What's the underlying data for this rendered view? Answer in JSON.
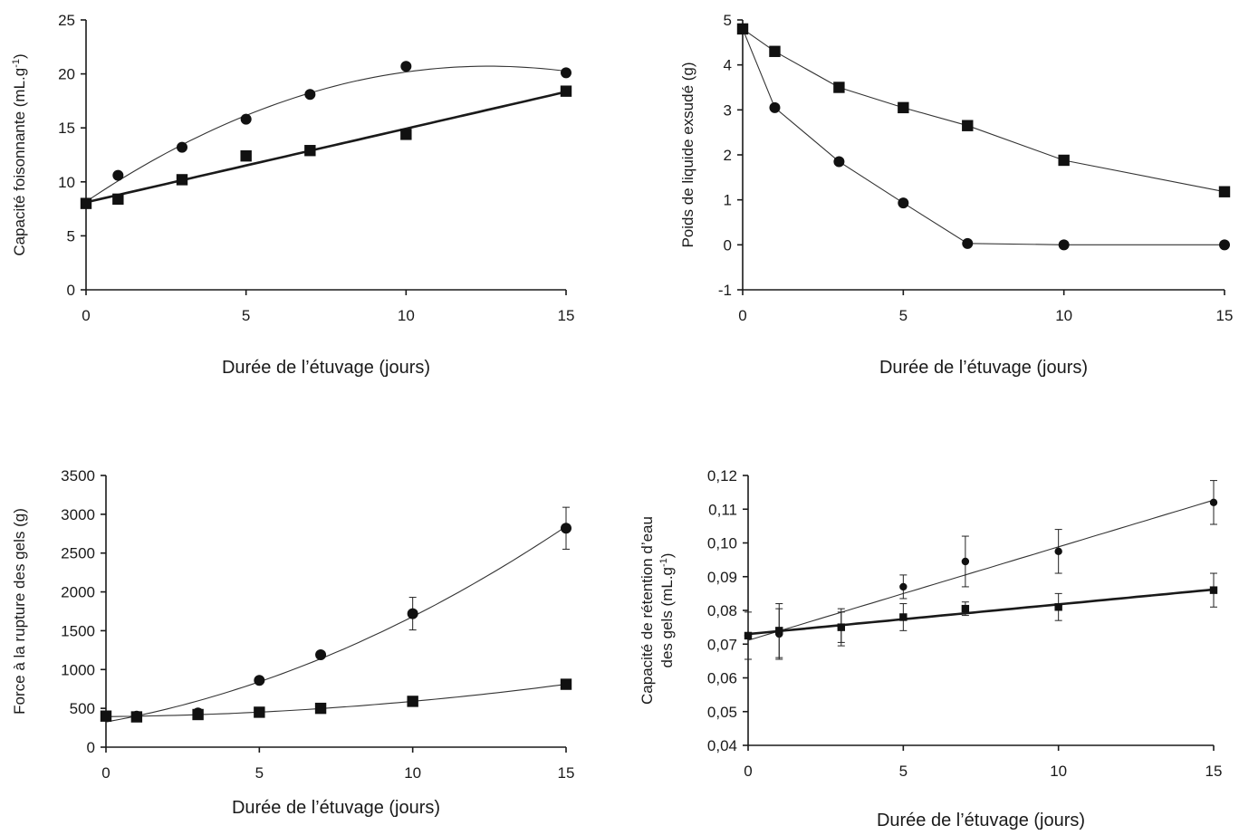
{
  "chart_data": [
    {
      "type": "scatter",
      "title": "",
      "xlabel": "Durée de l’étuvage (jours)",
      "ylabel_lines": [
        "Capacité foisonnante (mL.g-1)"
      ],
      "xlim": [
        0,
        15
      ],
      "ylim": [
        0,
        25
      ],
      "xticks": [
        "0",
        "5",
        "10",
        "15"
      ],
      "yticks": [
        "0",
        "5",
        "10",
        "15",
        "20",
        "25"
      ],
      "grid": false,
      "series": [
        {
          "marker": "circle",
          "fit": "quadratic",
          "x": [
            0,
            1,
            3,
            5,
            7,
            10,
            15
          ],
          "y": [
            8.0,
            10.6,
            13.2,
            15.8,
            18.1,
            20.7,
            20.1
          ]
        },
        {
          "marker": "square",
          "fit": "linear",
          "x": [
            0,
            1,
            3,
            5,
            7,
            10,
            15
          ],
          "y": [
            8.0,
            8.4,
            10.2,
            12.4,
            12.9,
            14.4,
            18.4
          ]
        }
      ]
    },
    {
      "type": "line",
      "title": "",
      "xlabel": "Durée de l’étuvage (jours)",
      "ylabel_lines": [
        "Poids de liquide exsudé (g)"
      ],
      "xlim": [
        0,
        15
      ],
      "ylim": [
        -1,
        5
      ],
      "xticks": [
        "0",
        "5",
        "10",
        "15"
      ],
      "yticks": [
        "-1",
        "0",
        "1",
        "2",
        "3",
        "4",
        "5"
      ],
      "grid": false,
      "series": [
        {
          "marker": "square",
          "x": [
            0,
            1,
            3,
            5,
            7,
            10,
            15
          ],
          "y": [
            4.8,
            4.3,
            3.5,
            3.05,
            2.65,
            1.88,
            1.18
          ]
        },
        {
          "marker": "circle",
          "x": [
            0,
            1,
            3,
            5,
            7,
            10,
            15
          ],
          "y": [
            4.8,
            3.05,
            1.85,
            0.93,
            0.03,
            0.0,
            0.0
          ]
        }
      ]
    },
    {
      "type": "scatter",
      "title": "",
      "xlabel": "Durée de l’étuvage (jours)",
      "ylabel_lines": [
        "Force à la rupture des gels (g)"
      ],
      "xlim": [
        0,
        15
      ],
      "ylim": [
        0,
        3500
      ],
      "xticks": [
        "0",
        "5",
        "10",
        "15"
      ],
      "yticks": [
        "0",
        "500",
        "1000",
        "1500",
        "2000",
        "2500",
        "3000",
        "3500"
      ],
      "grid": false,
      "series": [
        {
          "marker": "circle",
          "fit": "quadratic",
          "x": [
            0,
            1,
            3,
            5,
            7,
            10,
            15
          ],
          "y": [
            400,
            400,
            440,
            860,
            1190,
            1720,
            2820
          ],
          "err": [
            0,
            0,
            0,
            0,
            0,
            210,
            270
          ]
        },
        {
          "marker": "square",
          "fit": "quadratic",
          "x": [
            0,
            1,
            3,
            5,
            7,
            10,
            15
          ],
          "y": [
            400,
            390,
            420,
            450,
            500,
            590,
            810
          ]
        }
      ]
    },
    {
      "type": "scatter",
      "title": "",
      "xlabel": "Durée de l’étuvage (jours)",
      "ylabel_lines": [
        "Capacité de rétention d’eau",
        "des gels (mL.g-1)"
      ],
      "xlim": [
        0,
        15
      ],
      "ylim": [
        0.04,
        0.12
      ],
      "xticks": [
        "0",
        "5",
        "10",
        "15"
      ],
      "yticks": [
        "0,04",
        "0,05",
        "0,06",
        "0,07",
        "0,08",
        "0,09",
        "0,10",
        "0,11",
        "0,12"
      ],
      "grid": false,
      "series": [
        {
          "marker": "circle",
          "fit": "linear",
          "x": [
            0,
            1,
            3,
            5,
            7,
            10,
            15
          ],
          "y": [
            0.0725,
            0.073,
            0.075,
            0.087,
            0.0945,
            0.0975,
            0.112
          ],
          "err": [
            0,
            0.0075,
            0.0055,
            0.0035,
            0.0075,
            0.0065,
            0.0065
          ]
        },
        {
          "marker": "square",
          "fit": "linear",
          "x": [
            0,
            1,
            3,
            5,
            7,
            10,
            15
          ],
          "y": [
            0.0725,
            0.074,
            0.075,
            0.078,
            0.0805,
            0.081,
            0.086
          ],
          "err": [
            0.007,
            0.008,
            0.0045,
            0.004,
            0.002,
            0.004,
            0.005
          ]
        }
      ]
    }
  ]
}
